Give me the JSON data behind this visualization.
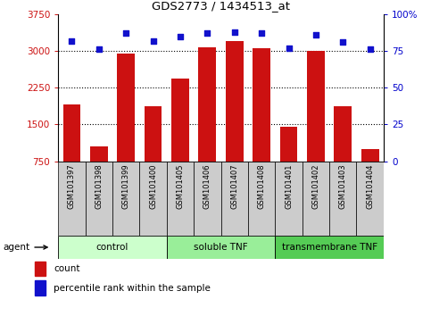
{
  "title": "GDS2773 / 1434513_at",
  "samples": [
    "GSM101397",
    "GSM101398",
    "GSM101399",
    "GSM101400",
    "GSM101405",
    "GSM101406",
    "GSM101407",
    "GSM101408",
    "GSM101401",
    "GSM101402",
    "GSM101403",
    "GSM101404"
  ],
  "counts": [
    1900,
    1050,
    2950,
    1870,
    2430,
    3080,
    3200,
    3060,
    1460,
    3010,
    1870,
    1000
  ],
  "percentiles": [
    82,
    76,
    87,
    82,
    85,
    87,
    88,
    87,
    77,
    86,
    81,
    76
  ],
  "bar_color": "#cc1111",
  "dot_color": "#1111cc",
  "ylim_left": [
    750,
    3750
  ],
  "ylim_right": [
    0,
    100
  ],
  "yticks_left": [
    750,
    1500,
    2250,
    3000,
    3750
  ],
  "yticks_right": [
    0,
    25,
    50,
    75,
    100
  ],
  "ytick_labels_right": [
    "0",
    "25",
    "50",
    "75",
    "100%"
  ],
  "groups": [
    {
      "label": "control",
      "start": 0,
      "end": 4,
      "color": "#ccffcc"
    },
    {
      "label": "soluble TNF",
      "start": 4,
      "end": 8,
      "color": "#99ee99"
    },
    {
      "label": "transmembrane TNF",
      "start": 8,
      "end": 12,
      "color": "#55cc55"
    }
  ],
  "group_row_label": "agent",
  "legend_count_label": "count",
  "legend_percentile_label": "percentile rank within the sample",
  "bar_baseline": 750,
  "tick_label_color_left": "#cc1111",
  "tick_label_color_right": "#0000cc",
  "xtick_box_color": "#cccccc",
  "grid_yticks": [
    1500,
    2250,
    3000
  ]
}
